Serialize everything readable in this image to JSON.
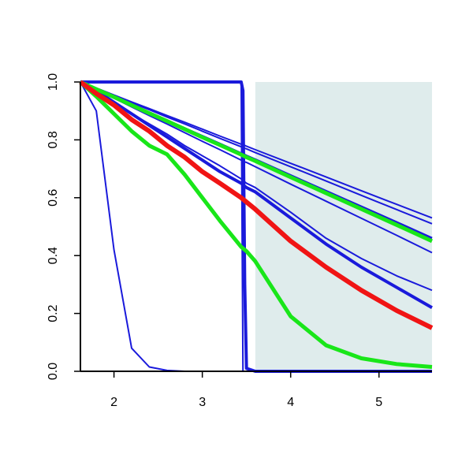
{
  "chart_data": {
    "type": "line",
    "x": [
      1.62,
      1.8,
      2.0,
      2.2,
      2.4,
      2.6,
      2.8,
      3.0,
      3.2,
      3.44,
      3.46,
      3.48,
      3.5,
      3.6,
      4.0,
      4.4,
      4.8,
      5.2,
      5.6
    ],
    "xlim": [
      1.62,
      5.6
    ],
    "xticks": [
      2,
      3,
      4,
      5
    ],
    "ylim": [
      0,
      1
    ],
    "yticks": [
      {
        "value": 0,
        "label": "0.0"
      },
      0.2,
      0.4,
      0.6,
      0.8,
      {
        "value": 1,
        "label": "1.0"
      }
    ],
    "shaded_region": {
      "xmin": 3.6,
      "xmax": 5.6,
      "color": "#dfecec"
    },
    "series": [
      {
        "color": "#1a1adb",
        "width": 2,
        "values": [
          1,
          0.9,
          0.42,
          0.08,
          0.015,
          0.003,
          0,
          0,
          0,
          0,
          0,
          0,
          0,
          0,
          0,
          0,
          0,
          0,
          0
        ]
      },
      {
        "color": "#1a1adb",
        "width": 2,
        "values": [
          1,
          1,
          1,
          1,
          1,
          1,
          1,
          1,
          1,
          1,
          0,
          0,
          0,
          0,
          0,
          0,
          0,
          0,
          0
        ]
      },
      {
        "color": "#1a1adb",
        "width": 4,
        "values": [
          1,
          1,
          1,
          1,
          1,
          1,
          1,
          1,
          1,
          1,
          0.97,
          0.3,
          0.01,
          0,
          0,
          0,
          0,
          0,
          0
        ]
      },
      {
        "color": "#1a1adb",
        "width": 2,
        "values": [
          1,
          0.979,
          0.955,
          0.931,
          0.908,
          0.884,
          0.861,
          0.837,
          0.813,
          0.785,
          0.783,
          0.781,
          0.778,
          0.766,
          0.719,
          0.672,
          0.624,
          0.577,
          0.53
        ]
      },
      {
        "color": "#1a1adb",
        "width": 2,
        "values": [
          1,
          0.978,
          0.953,
          0.928,
          0.904,
          0.879,
          0.855,
          0.83,
          0.805,
          0.776,
          0.774,
          0.771,
          0.769,
          0.756,
          0.707,
          0.658,
          0.608,
          0.559,
          0.51
        ]
      },
      {
        "color": "#1a1adb",
        "width": 3,
        "values": [
          1,
          0.976,
          0.949,
          0.921,
          0.894,
          0.867,
          0.84,
          0.813,
          0.786,
          0.753,
          0.751,
          0.748,
          0.745,
          0.732,
          0.677,
          0.623,
          0.569,
          0.515,
          0.46
        ]
      },
      {
        "color": "#1a1adb",
        "width": 2,
        "values": [
          1,
          0.973,
          0.944,
          0.914,
          0.884,
          0.855,
          0.825,
          0.795,
          0.766,
          0.73,
          0.727,
          0.724,
          0.722,
          0.707,
          0.647,
          0.588,
          0.529,
          0.47,
          0.41
        ]
      },
      {
        "color": "#1a1adb",
        "width": 2,
        "values": [
          1,
          0.97,
          0.93,
          0.89,
          0.855,
          0.82,
          0.78,
          0.745,
          0.71,
          0.665,
          0.66,
          0.655,
          0.65,
          0.635,
          0.55,
          0.46,
          0.39,
          0.33,
          0.28
        ]
      },
      {
        "color": "#1a1adb",
        "width": 4,
        "values": [
          1,
          0.97,
          0.93,
          0.89,
          0.85,
          0.81,
          0.77,
          0.73,
          0.69,
          0.65,
          0.645,
          0.64,
          0.635,
          0.62,
          0.53,
          0.44,
          0.36,
          0.29,
          0.22
        ]
      },
      {
        "color": "#19e619",
        "width": 5,
        "values": [
          1,
          0.975,
          0.948,
          0.92,
          0.892,
          0.865,
          0.837,
          0.809,
          0.782,
          0.749,
          0.746,
          0.743,
          0.74,
          0.727,
          0.671,
          0.616,
          0.561,
          0.506,
          0.45
        ]
      },
      {
        "color": "#19e619",
        "width": 5,
        "values": [
          1,
          0.95,
          0.89,
          0.83,
          0.78,
          0.75,
          0.68,
          0.6,
          0.52,
          0.43,
          0.425,
          0.42,
          0.415,
          0.38,
          0.19,
          0.09,
          0.045,
          0.025,
          0.015
        ]
      },
      {
        "color": "#f01414",
        "width": 6,
        "values": [
          1,
          0.96,
          0.92,
          0.87,
          0.83,
          0.78,
          0.74,
          0.69,
          0.65,
          0.6,
          0.595,
          0.59,
          0.585,
          0.56,
          0.45,
          0.36,
          0.28,
          0.21,
          0.15
        ]
      }
    ]
  }
}
